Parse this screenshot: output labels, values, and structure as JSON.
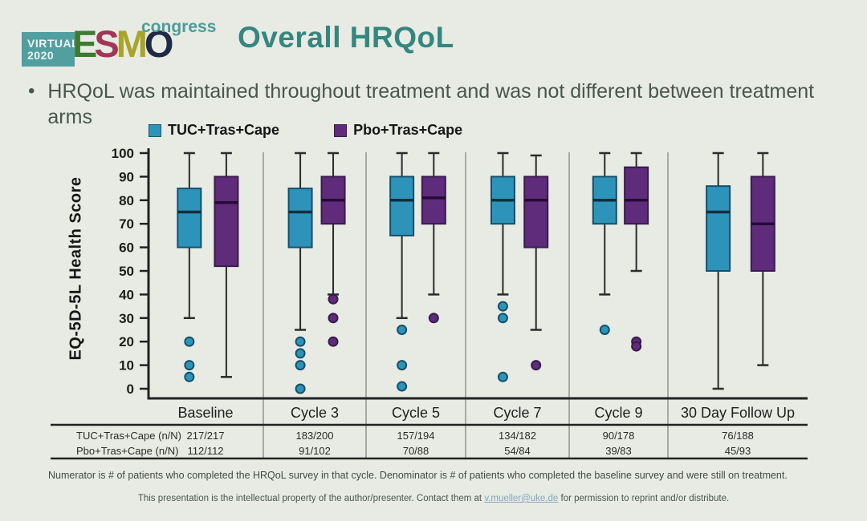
{
  "slide": {
    "logo": {
      "virtual_line1": "VIRTUAL",
      "virtual_line2": "2020",
      "virtual_bg": "#519f9f",
      "congress": "congress",
      "congress_color": "#4d9c99",
      "esmo_letters": [
        {
          "char": "E",
          "color": "#3e7a31"
        },
        {
          "char": "S",
          "color": "#a23558"
        },
        {
          "char": "M",
          "color": "#a8a428"
        },
        {
          "char": "O",
          "color": "#1f2a47"
        }
      ]
    },
    "title": "Overall HRQoL",
    "title_color": "#368680",
    "bullet_char": "•",
    "bullet_text": "HRQoL was maintained throughout treatment and was not different between treatment arms",
    "footnote": "Numerator is # of patients who completed the HRQoL survey in that cycle. Denominator is # of patients who completed the baseline survey and were still on treatment.",
    "disclaimer": {
      "before": "This presentation is the intellectual property of the author/presenter. Contact them at ",
      "email": "v.mueller@uke.de",
      "after": " for permission to reprint and/or distribute."
    }
  },
  "chart_data": {
    "type": "boxplot",
    "ylabel": "EQ-5D-5L Health Score",
    "ylim": [
      0,
      100
    ],
    "yticks": [
      0,
      10,
      20,
      30,
      40,
      50,
      60,
      70,
      80,
      90,
      100
    ],
    "grid": false,
    "legend_position": "top",
    "categories": [
      "Baseline",
      "Cycle 3",
      "Cycle 5",
      "Cycle 7",
      "Cycle 9",
      "30 Day Follow Up"
    ],
    "series": [
      {
        "name": "TUC+Tras+Cape",
        "color": "#2e93b8",
        "border": "#14506b",
        "median_color": "#0c2f40",
        "boxes": [
          {
            "low": 30,
            "q1": 60,
            "median": 75,
            "q3": 85,
            "high": 100,
            "outliers": [
              20,
              10,
              5
            ]
          },
          {
            "low": 25,
            "q1": 60,
            "median": 75,
            "q3": 85,
            "high": 100,
            "outliers": [
              20,
              15,
              10,
              0
            ]
          },
          {
            "low": 30,
            "q1": 65,
            "median": 80,
            "q3": 90,
            "high": 100,
            "outliers": [
              25,
              10,
              1
            ]
          },
          {
            "low": 40,
            "q1": 70,
            "median": 80,
            "q3": 90,
            "high": 100,
            "outliers": [
              35,
              30,
              5
            ]
          },
          {
            "low": 40,
            "q1": 70,
            "median": 80,
            "q3": 90,
            "high": 100,
            "outliers": [
              25
            ]
          },
          {
            "low": 0,
            "q1": 50,
            "median": 75,
            "q3": 86,
            "high": 100,
            "outliers": []
          }
        ]
      },
      {
        "name": "Pbo+Tras+Cape",
        "color": "#5e2c7a",
        "border": "#3a1a4e",
        "median_color": "#260b35",
        "boxes": [
          {
            "low": 5,
            "q1": 52,
            "median": 79,
            "q3": 90,
            "high": 100,
            "outliers": []
          },
          {
            "low": 40,
            "q1": 70,
            "median": 80,
            "q3": 90,
            "high": 100,
            "outliers": [
              38,
              30,
              20
            ]
          },
          {
            "low": 40,
            "q1": 70,
            "median": 81,
            "q3": 90,
            "high": 100,
            "outliers": [
              30
            ]
          },
          {
            "low": 25,
            "q1": 60,
            "median": 80,
            "q3": 90,
            "high": 99,
            "outliers": [
              10
            ]
          },
          {
            "low": 50,
            "q1": 70,
            "median": 80,
            "q3": 94,
            "high": 100,
            "outliers": [
              20,
              18
            ]
          },
          {
            "low": 10,
            "q1": 50,
            "median": 70,
            "q3": 90,
            "high": 100,
            "outliers": []
          }
        ]
      }
    ]
  },
  "table": {
    "rows": [
      {
        "label": "TUC+Tras+Cape (n/N)",
        "values": [
          "217/217",
          "183/200",
          "157/194",
          "134/182",
          "90/178",
          "76/188"
        ]
      },
      {
        "label": "Pbo+Tras+Cape (n/N)",
        "values": [
          "112/112",
          "91/102",
          "70/88",
          "54/84",
          "39/83",
          "45/93"
        ]
      }
    ]
  }
}
